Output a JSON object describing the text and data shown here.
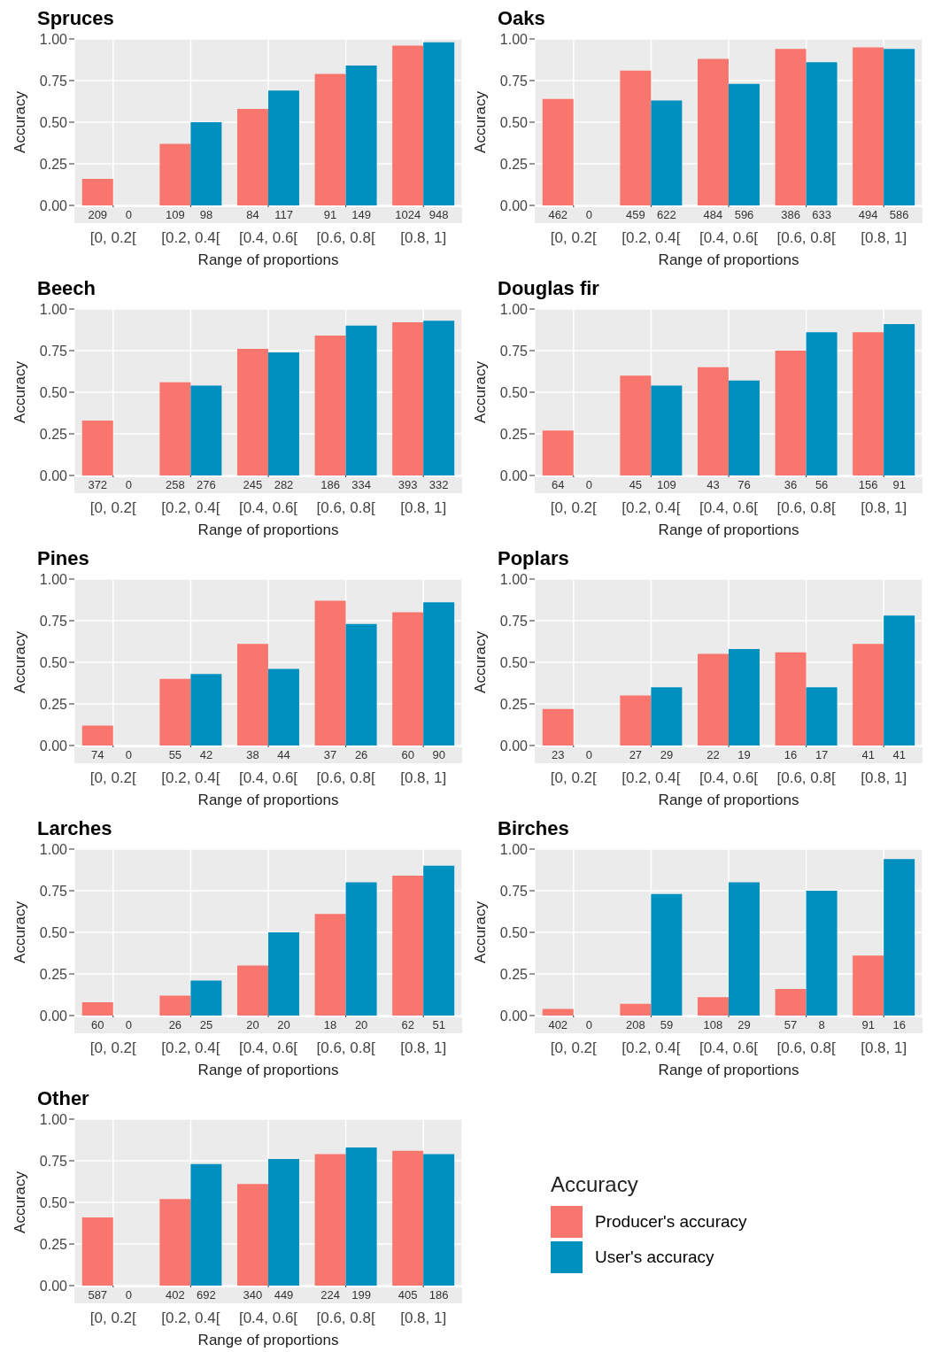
{
  "chart_data": [
    {
      "type": "bar",
      "title": "Spruces",
      "xlabel": "Range of proportions",
      "ylabel": "Accuracy",
      "categories": [
        "[0, 0.2[",
        "[0.2, 0.4[",
        "[0.4, 0.6[",
        "[0.6, 0.8[",
        "[0.8, 1]"
      ],
      "ylim": [
        0,
        1
      ],
      "yticks": [
        {
          "value": 0,
          "label": "0.00"
        },
        {
          "value": 0.25,
          "label": "0.25"
        },
        {
          "value": 0.5,
          "label": "0.50"
        },
        {
          "value": 0.75,
          "label": "0.75"
        },
        {
          "value": 1,
          "label": "1.00"
        }
      ],
      "grid": true,
      "legend": false,
      "annotations": [
        "209",
        "0",
        "109",
        "98",
        "84",
        "117",
        "91",
        "149",
        "1024",
        "948"
      ],
      "series": [
        {
          "color": "#f8766d",
          "values": [
            0.16,
            0.37,
            0.58,
            0.79,
            0.96
          ]
        },
        {
          "color": "#0090c0",
          "values": [
            null,
            0.5,
            0.69,
            0.84,
            0.98
          ]
        }
      ]
    },
    {
      "type": "bar",
      "title": "Oaks",
      "xlabel": "Range of proportions",
      "ylabel": "Accuracy",
      "categories": [
        "[0, 0.2[",
        "[0.2, 0.4[",
        "[0.4, 0.6[",
        "[0.6, 0.8[",
        "[0.8, 1]"
      ],
      "ylim": [
        0,
        1
      ],
      "yticks": [
        {
          "value": 0,
          "label": "0.00"
        },
        {
          "value": 0.25,
          "label": "0.25"
        },
        {
          "value": 0.5,
          "label": "0.50"
        },
        {
          "value": 0.75,
          "label": "0.75"
        },
        {
          "value": 1,
          "label": "1.00"
        }
      ],
      "grid": true,
      "legend": false,
      "annotations": [
        "462",
        "0",
        "459",
        "622",
        "484",
        "596",
        "386",
        "633",
        "494",
        "586"
      ],
      "series": [
        {
          "color": "#f8766d",
          "values": [
            0.64,
            0.81,
            0.88,
            0.94,
            0.95
          ]
        },
        {
          "color": "#0090c0",
          "values": [
            null,
            0.63,
            0.73,
            0.86,
            0.94
          ]
        }
      ]
    },
    {
      "type": "bar",
      "title": "Beech",
      "xlabel": "Range of proportions",
      "ylabel": "Accuracy",
      "categories": [
        "[0, 0.2[",
        "[0.2, 0.4[",
        "[0.4, 0.6[",
        "[0.6, 0.8[",
        "[0.8, 1]"
      ],
      "ylim": [
        0,
        1
      ],
      "yticks": [
        {
          "value": 0,
          "label": "0.00"
        },
        {
          "value": 0.25,
          "label": "0.25"
        },
        {
          "value": 0.5,
          "label": "0.50"
        },
        {
          "value": 0.75,
          "label": "0.75"
        },
        {
          "value": 1,
          "label": "1.00"
        }
      ],
      "grid": true,
      "legend": false,
      "annotations": [
        "372",
        "0",
        "258",
        "276",
        "245",
        "282",
        "186",
        "334",
        "393",
        "332"
      ],
      "series": [
        {
          "color": "#f8766d",
          "values": [
            0.33,
            0.56,
            0.76,
            0.84,
            0.92
          ]
        },
        {
          "color": "#0090c0",
          "values": [
            null,
            0.54,
            0.74,
            0.9,
            0.93
          ]
        }
      ]
    },
    {
      "type": "bar",
      "title": "Douglas fir",
      "xlabel": "Range of proportions",
      "ylabel": "Accuracy",
      "categories": [
        "[0, 0.2[",
        "[0.2, 0.4[",
        "[0.4, 0.6[",
        "[0.6, 0.8[",
        "[0.8, 1]"
      ],
      "ylim": [
        0,
        1
      ],
      "yticks": [
        {
          "value": 0,
          "label": "0.00"
        },
        {
          "value": 0.25,
          "label": "0.25"
        },
        {
          "value": 0.5,
          "label": "0.50"
        },
        {
          "value": 0.75,
          "label": "0.75"
        },
        {
          "value": 1,
          "label": "1.00"
        }
      ],
      "grid": true,
      "legend": false,
      "annotations": [
        "64",
        "0",
        "45",
        "109",
        "43",
        "76",
        "36",
        "56",
        "156",
        "91"
      ],
      "series": [
        {
          "color": "#f8766d",
          "values": [
            0.27,
            0.6,
            0.65,
            0.75,
            0.86
          ]
        },
        {
          "color": "#0090c0",
          "values": [
            null,
            0.54,
            0.57,
            0.86,
            0.91
          ]
        }
      ]
    },
    {
      "type": "bar",
      "title": "Pines",
      "xlabel": "Range of proportions",
      "ylabel": "Accuracy",
      "categories": [
        "[0, 0.2[",
        "[0.2, 0.4[",
        "[0.4, 0.6[",
        "[0.6, 0.8[",
        "[0.8, 1]"
      ],
      "ylim": [
        0,
        1
      ],
      "yticks": [
        {
          "value": 0,
          "label": "0.00"
        },
        {
          "value": 0.25,
          "label": "0.25"
        },
        {
          "value": 0.5,
          "label": "0.50"
        },
        {
          "value": 0.75,
          "label": "0.75"
        },
        {
          "value": 1,
          "label": "1.00"
        }
      ],
      "grid": true,
      "legend": false,
      "annotations": [
        "74",
        "0",
        "55",
        "42",
        "38",
        "44",
        "37",
        "26",
        "60",
        "90"
      ],
      "series": [
        {
          "color": "#f8766d",
          "values": [
            0.12,
            0.4,
            0.61,
            0.87,
            0.8
          ]
        },
        {
          "color": "#0090c0",
          "values": [
            null,
            0.43,
            0.46,
            0.73,
            0.86
          ]
        }
      ]
    },
    {
      "type": "bar",
      "title": "Poplars",
      "xlabel": "Range of proportions",
      "ylabel": "Accuracy",
      "categories": [
        "[0, 0.2[",
        "[0.2, 0.4[",
        "[0.4, 0.6[",
        "[0.6, 0.8[",
        "[0.8, 1]"
      ],
      "ylim": [
        0,
        1
      ],
      "yticks": [
        {
          "value": 0,
          "label": "0.00"
        },
        {
          "value": 0.25,
          "label": "0.25"
        },
        {
          "value": 0.5,
          "label": "0.50"
        },
        {
          "value": 0.75,
          "label": "0.75"
        },
        {
          "value": 1,
          "label": "1.00"
        }
      ],
      "grid": true,
      "legend": false,
      "annotations": [
        "23",
        "0",
        "27",
        "29",
        "22",
        "19",
        "16",
        "17",
        "41",
        "41"
      ],
      "series": [
        {
          "color": "#f8766d",
          "values": [
            0.22,
            0.3,
            0.55,
            0.56,
            0.61
          ]
        },
        {
          "color": "#0090c0",
          "values": [
            null,
            0.35,
            0.58,
            0.35,
            0.78
          ]
        }
      ]
    },
    {
      "type": "bar",
      "title": "Larches",
      "xlabel": "Range of proportions",
      "ylabel": "Accuracy",
      "categories": [
        "[0, 0.2[",
        "[0.2, 0.4[",
        "[0.4, 0.6[",
        "[0.6, 0.8[",
        "[0.8, 1]"
      ],
      "ylim": [
        0,
        1
      ],
      "yticks": [
        {
          "value": 0,
          "label": "0.00"
        },
        {
          "value": 0.25,
          "label": "0.25"
        },
        {
          "value": 0.5,
          "label": "0.50"
        },
        {
          "value": 0.75,
          "label": "0.75"
        },
        {
          "value": 1,
          "label": "1.00"
        }
      ],
      "grid": true,
      "legend": false,
      "annotations": [
        "60",
        "0",
        "26",
        "25",
        "20",
        "20",
        "18",
        "20",
        "62",
        "51"
      ],
      "series": [
        {
          "color": "#f8766d",
          "values": [
            0.08,
            0.12,
            0.3,
            0.61,
            0.84
          ]
        },
        {
          "color": "#0090c0",
          "values": [
            null,
            0.21,
            0.5,
            0.8,
            0.9
          ]
        }
      ]
    },
    {
      "type": "bar",
      "title": "Birches",
      "xlabel": "Range of proportions",
      "ylabel": "Accuracy",
      "categories": [
        "[0, 0.2[",
        "[0.2, 0.4[",
        "[0.4, 0.6[",
        "[0.6, 0.8[",
        "[0.8, 1]"
      ],
      "ylim": [
        0,
        1
      ],
      "yticks": [
        {
          "value": 0,
          "label": "0.00"
        },
        {
          "value": 0.25,
          "label": "0.25"
        },
        {
          "value": 0.5,
          "label": "0.50"
        },
        {
          "value": 0.75,
          "label": "0.75"
        },
        {
          "value": 1,
          "label": "1.00"
        }
      ],
      "grid": true,
      "legend": false,
      "annotations": [
        "402",
        "0",
        "208",
        "59",
        "108",
        "29",
        "57",
        "8",
        "91",
        "16"
      ],
      "series": [
        {
          "color": "#f8766d",
          "values": [
            0.04,
            0.07,
            0.11,
            0.16,
            0.36
          ]
        },
        {
          "color": "#0090c0",
          "values": [
            null,
            0.73,
            0.8,
            0.75,
            0.94
          ]
        }
      ]
    },
    {
      "type": "bar",
      "title": "Other",
      "xlabel": "Range of proportions",
      "ylabel": "Accuracy",
      "categories": [
        "[0, 0.2[",
        "[0.2, 0.4[",
        "[0.4, 0.6[",
        "[0.6, 0.8[",
        "[0.8, 1]"
      ],
      "ylim": [
        0,
        1
      ],
      "yticks": [
        {
          "value": 0,
          "label": "0.00"
        },
        {
          "value": 0.25,
          "label": "0.25"
        },
        {
          "value": 0.5,
          "label": "0.50"
        },
        {
          "value": 0.75,
          "label": "0.75"
        },
        {
          "value": 1,
          "label": "1.00"
        }
      ],
      "grid": true,
      "legend": "right",
      "legend_title": "Accuracy",
      "annotations": [
        "587",
        "0",
        "402",
        "692",
        "340",
        "449",
        "224",
        "199",
        "405",
        "186"
      ],
      "series": [
        {
          "name": "Producer's accuracy",
          "color": "#f8766d",
          "values": [
            0.41,
            0.52,
            0.61,
            0.79,
            0.81
          ]
        },
        {
          "name": "User's accuracy",
          "color": "#0090c0",
          "values": [
            null,
            0.73,
            0.76,
            0.83,
            0.79
          ]
        }
      ]
    }
  ]
}
